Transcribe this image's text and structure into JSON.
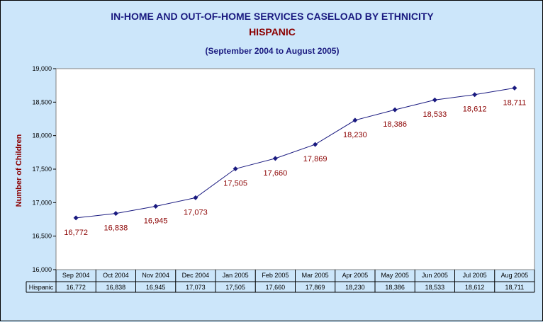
{
  "chart_data": {
    "type": "line",
    "title": "IN-HOME AND OUT-OF-HOME SERVICES CASELOAD BY ETHNICITY",
    "subtitle": "HISPANIC",
    "period": "(September 2004 to August 2005)",
    "ylabel": "Number of Children",
    "xlabel": "",
    "ylim": [
      16000,
      19000
    ],
    "yticks": [
      16000,
      16500,
      17000,
      17500,
      18000,
      18500,
      19000
    ],
    "ytick_labels": [
      "16,000",
      "16,500",
      "17,000",
      "17,500",
      "18,000",
      "18,500",
      "19,000"
    ],
    "grid": false,
    "legend": "none",
    "categories": [
      "Sep 2004",
      "Oct 2004",
      "Nov 2004",
      "Dec 2004",
      "Jan 2005",
      "Feb 2005",
      "Mar 2005",
      "Apr 2005",
      "May 2005",
      "Jun 2005",
      "Jul 2005",
      "Aug 2005"
    ],
    "series": [
      {
        "name": "Hispanic",
        "values": [
          16772,
          16838,
          16945,
          17073,
          17505,
          17660,
          17869,
          18230,
          18386,
          18533,
          18612,
          18711
        ],
        "labels": [
          "16,772",
          "16,838",
          "16,945",
          "17,073",
          "17,505",
          "17,660",
          "17,869",
          "18,230",
          "18,386",
          "18,533",
          "18,612",
          "18,711"
        ]
      }
    ],
    "colors": {
      "line": "#1a1a80",
      "data_label": "#8b0000",
      "background": "#cce6fa",
      "plot_area": "#ffffff"
    }
  }
}
